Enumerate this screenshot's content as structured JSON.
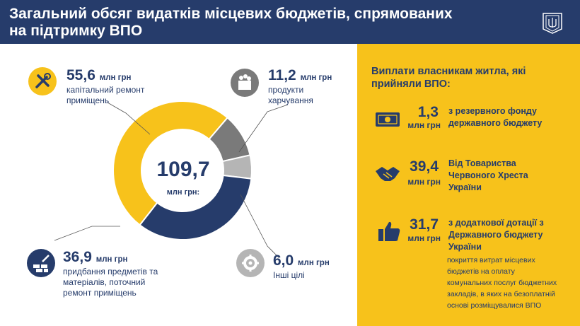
{
  "header": {
    "title_line1": "Загальний обсяг видатків місцевих бюджетів, спрямованих",
    "title_line2": "на підтримку ВПО"
  },
  "colors": {
    "navy": "#263c6b",
    "yellow": "#f7c21b",
    "gray": "#7a7a7a",
    "light_gray": "#b5b5b5"
  },
  "chart_data": {
    "type": "pie",
    "total": 109.7,
    "total_label": "109,7",
    "total_unit": "млн грн:",
    "categories": [
      "капітальний ремонт приміщень",
      "продукти харчування",
      "Інші цілі",
      "придбання предметів та матеріалів, поточний ремонт приміщень"
    ],
    "values": [
      55.6,
      11.2,
      6.0,
      36.9
    ],
    "colors": [
      "#f7c21b",
      "#7a7a7a",
      "#b5b5b5",
      "#263c6b"
    ]
  },
  "legend": {
    "capital": {
      "value": "55,6",
      "unit": "млн грн",
      "desc1": "капітальний ремонт",
      "desc2": "приміщень",
      "icon": "tools-icon"
    },
    "food": {
      "value": "11,2",
      "unit": "млн грн",
      "desc1": "продукти",
      "desc2": "харчування",
      "icon": "grocery-basket-icon"
    },
    "materials": {
      "value": "36,9",
      "unit": "млн грн",
      "desc1": "придбання предметів та",
      "desc2": "матеріалів, поточний",
      "desc3": "ремонт приміщень",
      "icon": "bricks-trowel-icon"
    },
    "other": {
      "value": "6,0",
      "unit": "млн грн",
      "desc1": "Інші цілі",
      "icon": "gear-icon"
    }
  },
  "payments": {
    "title_line1": "Виплати власникам житла, які",
    "title_line2": "прийняли ВПО:",
    "items": [
      {
        "value": "1,3",
        "unit": "млн грн",
        "desc1": "з резервного фонду",
        "desc2": "державного бюджету",
        "icon": "banknote-icon"
      },
      {
        "value": "39,4",
        "unit": "млн грн",
        "desc1": "Від Товариства",
        "desc2": "Червоного Хреста",
        "desc3": "України",
        "icon": "handshake-icon"
      },
      {
        "value": "31,7",
        "unit": "млн грн",
        "desc1": "з додаткової дотації з",
        "desc2": "Державного бюджету",
        "desc3": "України",
        "icon": "thumbs-up-icon"
      }
    ],
    "note_lines": [
      "покриття витрат місцевих",
      "бюджетів на оплату",
      "комунальних послуг бюджетних",
      "закладів, в яких на безоплатній",
      "основі розміщувалися ВПО"
    ]
  }
}
